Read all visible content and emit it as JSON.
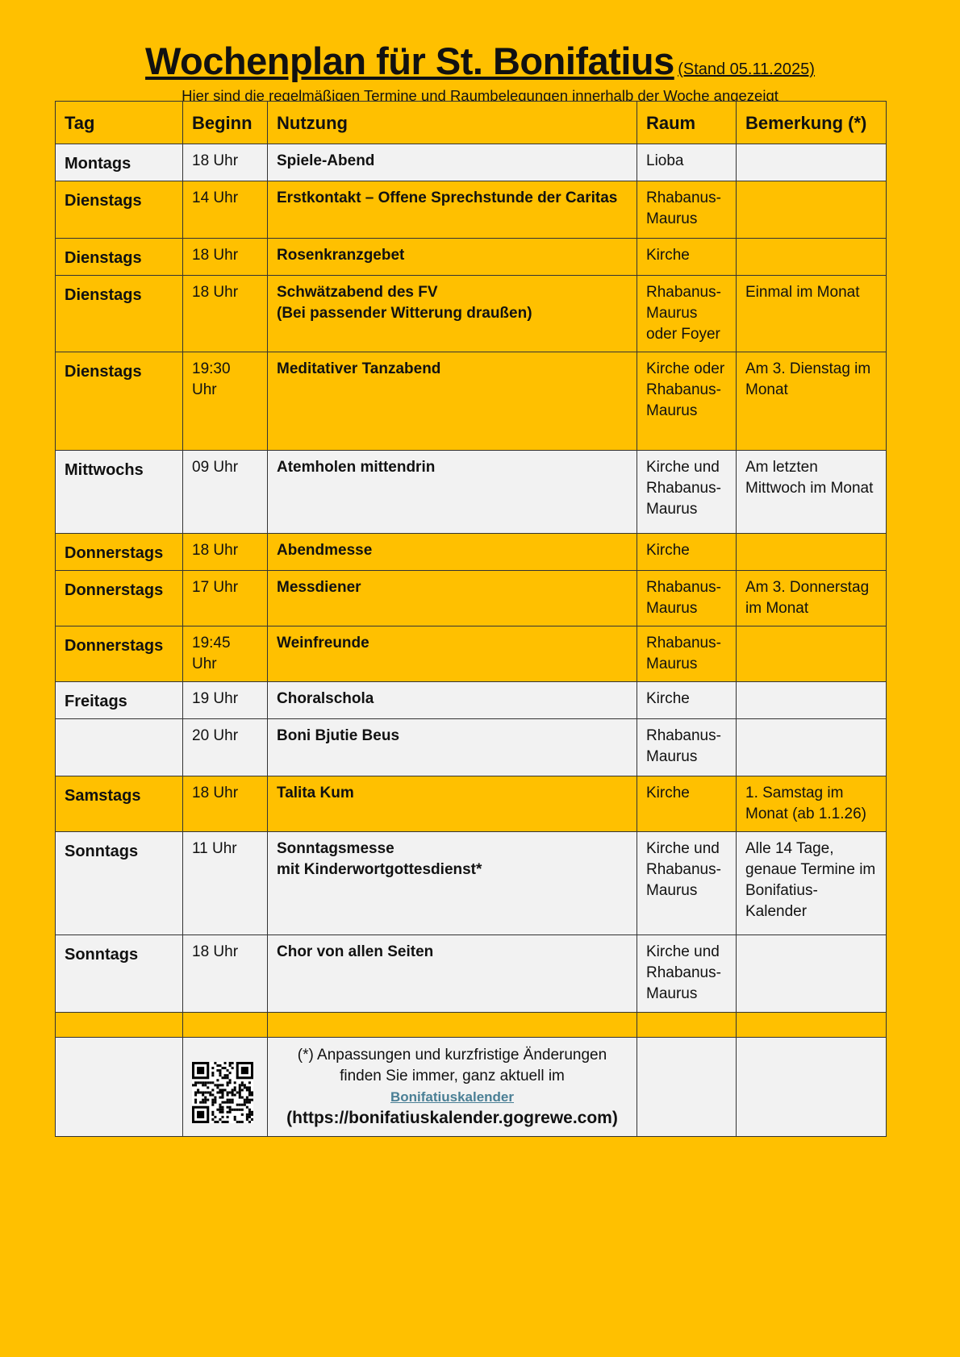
{
  "header": {
    "title": "Wochenplan für St. Bonifatius",
    "stand": "(Stand 05.11.2025)",
    "subtitle": "Hier sind die regelmäßigen Termine und Raumbelegungen innerhalb der Woche angezeigt"
  },
  "table": {
    "columns": [
      "Tag",
      "Beginn",
      "Nutzung",
      "Raum",
      "Bemerkung (*)"
    ],
    "rows": [
      {
        "tag": "Montags",
        "beginn": "18 Uhr",
        "nutzung": [
          "Spiele-Abend"
        ],
        "raum": "Lioba",
        "bemerkung": "",
        "color": "grey"
      },
      {
        "tag": "Dienstags",
        "beginn": "14 Uhr",
        "nutzung": [
          "Erstkontakt – Offene Sprechstunde der Caritas"
        ],
        "raum": "Rhabanus-Maurus",
        "bemerkung": "",
        "color": "yellow"
      },
      {
        "tag": "Dienstags",
        "beginn": "18 Uhr",
        "nutzung": [
          "Rosenkranzgebet"
        ],
        "raum": "Kirche",
        "bemerkung": "",
        "color": "yellow"
      },
      {
        "tag": "Dienstags",
        "beginn": "18 Uhr",
        "nutzung": [
          "Schwätzabend des FV",
          "(Bei passender Witterung draußen)"
        ],
        "raum": "Rhabanus-Maurus oder Foyer",
        "bemerkung": "Einmal im Monat",
        "color": "yellow"
      },
      {
        "tag": "Dienstags",
        "beginn": "19:30 Uhr",
        "nutzung": [
          "Meditativer Tanzabend"
        ],
        "raum": "Kirche oder Rhabanus-Maurus",
        "bemerkung": "Am 3. Dienstag im Monat",
        "color": "yellow"
      },
      {
        "tag": "Mittwochs",
        "beginn": "09 Uhr",
        "nutzung": [
          "Atemholen mittendrin"
        ],
        "raum": "Kirche und Rhabanus-Maurus",
        "bemerkung": "Am letzten Mittwoch im Monat",
        "color": "grey"
      },
      {
        "tag": "Donnerstags",
        "beginn": "18 Uhr",
        "nutzung": [
          "Abendmesse"
        ],
        "raum": "Kirche",
        "bemerkung": "",
        "color": "yellow"
      },
      {
        "tag": "Donnerstags",
        "beginn": "17 Uhr",
        "nutzung": [
          "Messdiener"
        ],
        "raum": "Rhabanus-Maurus",
        "bemerkung": "Am 3. Donnerstag im Monat",
        "color": "yellow"
      },
      {
        "tag": "Donnerstags",
        "beginn": "19:45 Uhr",
        "nutzung": [
          "Weinfreunde"
        ],
        "raum": "Rhabanus-Maurus",
        "bemerkung": "",
        "color": "yellow"
      },
      {
        "tag": "Freitags",
        "beginn": "19 Uhr",
        "nutzung": [
          "Choralschola"
        ],
        "raum": "Kirche",
        "bemerkung": "",
        "color": "grey"
      },
      {
        "tag": "",
        "beginn": "20 Uhr",
        "nutzung": [
          "Boni Bjutie Beus"
        ],
        "raum": "Rhabanus-Maurus",
        "bemerkung": "",
        "color": "grey"
      },
      {
        "tag": "Samstags",
        "beginn": "18 Uhr",
        "nutzung": [
          "Talita Kum"
        ],
        "raum": "Kirche",
        "bemerkung": "1. Samstag im Monat (ab 1.1.26)",
        "color": "yellow"
      },
      {
        "tag": "Sonntags",
        "beginn": "11 Uhr",
        "nutzung": [
          "Sonntagsmesse",
          "mit Kinderwortgottesdienst*"
        ],
        "raum": "Kirche und Rhabanus-Maurus",
        "bemerkung": "Alle 14 Tage, genaue Termine im Bonifatius-Kalender",
        "color": "grey"
      },
      {
        "tag": "Sonntags",
        "beginn": "18 Uhr",
        "nutzung": [
          "Chor von allen Seiten"
        ],
        "raum": "Kirche und Rhabanus-Maurus",
        "bemerkung": "",
        "color": "grey"
      },
      {
        "tag": "",
        "beginn": "",
        "nutzung": [
          ""
        ],
        "raum": "",
        "bemerkung": "",
        "color": "yellow"
      }
    ],
    "footnote": {
      "line1": "(*) Anpassungen und kurzfristige Änderungen",
      "line2": "finden Sie immer, ganz aktuell im",
      "link": "Bonifatiuskalender",
      "url": "(https://bonifatiuskalender.gogrewe.com)",
      "qr_icon": "qr-code-icon"
    }
  },
  "colors": {
    "yellow": "#FFC000",
    "grey": "#F2F2F2",
    "link": "#4A7F95"
  }
}
